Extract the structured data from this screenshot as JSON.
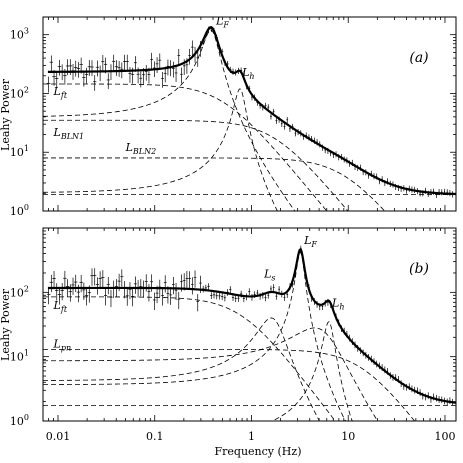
{
  "chart_data": {
    "type": "line",
    "xlabel": "Frequency (Hz)",
    "ylabel": "Leahy Power",
    "xscale": "log",
    "yscale": "log",
    "xlim": [
      0.007,
      130
    ],
    "x_ticks": [
      {
        "v": 0.01,
        "label": "0.01"
      },
      {
        "v": 0.1,
        "label": "0.1"
      },
      {
        "v": 1,
        "label": "1"
      },
      {
        "v": 10,
        "label": "10"
      },
      {
        "v": 100,
        "label": "100"
      }
    ],
    "panels": [
      {
        "tag": "(a)",
        "ylim": [
          1,
          2000
        ],
        "y_ticks": [
          {
            "exp": 0,
            "base": "10",
            "power": "0"
          },
          {
            "exp": 1,
            "base": "10",
            "power": "1"
          },
          {
            "exp": 2,
            "base": "10",
            "power": "2"
          },
          {
            "exp": 3,
            "base": "10",
            "power": "3"
          }
        ],
        "constant": 1.9,
        "components": [
          {
            "name": "Lft",
            "base": "L",
            "sub": "ft",
            "type": "lorentz",
            "norm": 145,
            "f0": 0,
            "width": 0.5,
            "label_x": 0.009,
            "label_y": 95
          },
          {
            "name": "LF",
            "base": "L",
            "sub": "F",
            "type": "lorentz",
            "norm": 1200,
            "f0": 0.38,
            "width": 0.07,
            "label_x": 0.43,
            "label_y": 1500
          },
          {
            "name": "Lh",
            "base": "L",
            "sub": "h",
            "type": "lorentz",
            "norm": 120,
            "f0": 0.76,
            "width": 0.1,
            "label_x": 0.8,
            "label_y": 200
          },
          {
            "name": "LBLN1",
            "base": "L",
            "sub": "BLN1",
            "type": "lorentz",
            "norm": 35,
            "f0": 0,
            "width": 1.7,
            "label_x": 0.009,
            "label_y": 19
          },
          {
            "name": "LBLN2",
            "base": "L",
            "sub": "BLN2",
            "type": "lorentz",
            "norm": 8,
            "f0": 0,
            "width": 9,
            "label_x": 0.05,
            "label_y": 10.5
          }
        ],
        "extra_shoulder": {
          "norm": 0,
          "f0": 0,
          "width": 1
        }
      },
      {
        "tag": "(b)",
        "ylim": [
          1,
          1000
        ],
        "y_ticks": [
          {
            "exp": 0,
            "base": "10",
            "power": "0"
          },
          {
            "exp": 1,
            "base": "10",
            "power": "1"
          },
          {
            "exp": 2,
            "base": "10",
            "power": "2"
          }
        ],
        "constant": 1.75,
        "components": [
          {
            "name": "Lft",
            "base": "L",
            "sub": "ft",
            "type": "lorentz",
            "norm": 85,
            "f0": 0,
            "width": 0.8,
            "label_x": 0.009,
            "label_y": 55
          },
          {
            "name": "Ls",
            "base": "L",
            "sub": "s",
            "type": "lorentz",
            "norm": 40,
            "f0": 1.6,
            "width": 0.55,
            "label_x": 1.35,
            "label_y": 170
          },
          {
            "name": "LF",
            "base": "L",
            "sub": "F",
            "type": "lorentz",
            "norm": 420,
            "f0": 3.2,
            "width": 0.3,
            "label_x": 3.5,
            "label_y": 560
          },
          {
            "name": "Lh",
            "base": "L",
            "sub": "h",
            "type": "lorentz",
            "norm": 35,
            "f0": 6.3,
            "width": 0.8,
            "label_x": 6.8,
            "label_y": 60
          },
          {
            "name": "Lpn",
            "base": "L",
            "sub": "pn",
            "type": "lorentz",
            "norm": 13,
            "f0": 0,
            "width": 14,
            "label_x": 0.009,
            "label_y": 14
          }
        ],
        "extra_shoulder": {
          "norm": 28,
          "f0": 4.5,
          "width": 3.0
        }
      }
    ]
  }
}
